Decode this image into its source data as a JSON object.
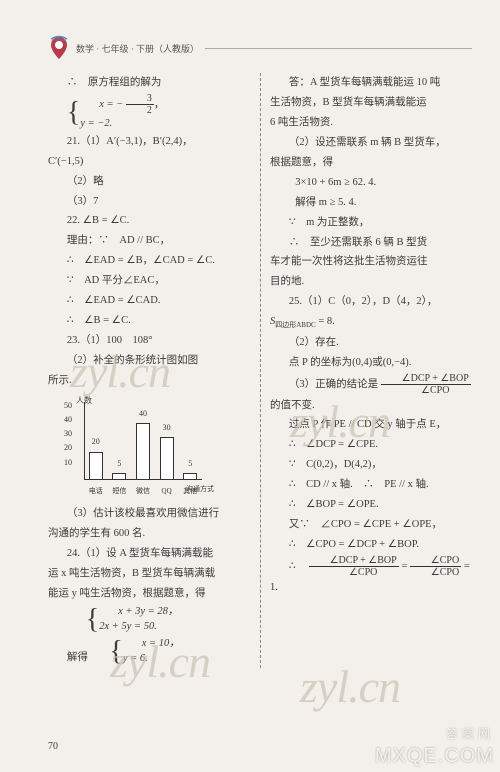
{
  "header": {
    "title": "数学 · 七年级 · 下册（人教版）"
  },
  "pageNumber": "70",
  "watermarks": [
    "zyl.cn",
    "zyl.cn",
    "zyl.cn",
    "zyl.cn"
  ],
  "siteMark1": "答案网",
  "siteMark2": "MXQE.COM",
  "left": {
    "l1a": "∴　原方程组的解为",
    "l1b_eq1_lhs": "x = −",
    "l1b_eq1_num": "3",
    "l1b_eq1_den": "2",
    "l1b_eq1_tail": "，",
    "l1b_eq2": "y = −2.",
    "l2": "21.（1）A′(−3,1)，B′(2,4)，",
    "l3": "C′(−1,5)",
    "l4": "（2）略",
    "l5": "（3）7",
    "l6": "22. ∠B = ∠C.",
    "l7": "理由：∵　AD // BC，",
    "l8": "∴　∠EAD = ∠B，∠CAD = ∠C.",
    "l9": "∵　AD 平分∠EAC，",
    "l10": "∴　∠EAD = ∠CAD.",
    "l11": "∴　∠B = ∠C.",
    "l12": "23.（1）100　108°",
    "l13": "（2）补全的条形统计图如图",
    "l14": "所示.",
    "chart": {
      "yTitle": "人数",
      "xTitle": "沟通方式",
      "yTicks": [
        "10",
        "20",
        "30",
        "40",
        "50"
      ],
      "yTickVals": [
        10,
        20,
        30,
        40,
        50
      ],
      "yMax": 55,
      "categories": [
        "电话",
        "短信",
        "微信",
        "QQ",
        "其他"
      ],
      "values": [
        20,
        5,
        40,
        30,
        5
      ],
      "barColor": "#ffffff",
      "borderColor": "#333333",
      "axisColor": "#333333",
      "fontSize": 8
    },
    "l15": "（3）估计该校最喜欢用微信进行",
    "l16": "沟通的学生有 600 名.",
    "l17": "24.（1）设 A 型货车每辆满载能",
    "l18": "运 x 吨生活物资，B 型货车每辆满载",
    "l19": "能运 y 吨生活物资，根据题意，得",
    "sys1_eq1": "x + 3y = 28，",
    "sys1_eq2": "2x + 5y = 50.",
    "sys2_lead": "解得",
    "sys2_eq1": "x = 10，",
    "sys2_eq2": "y = 6."
  },
  "right": {
    "r1": "答：A 型货车每辆满载能运 10 吨",
    "r2": "生活物资，B 型货车每辆满载能运",
    "r3": "6 吨生活物资.",
    "r4": "（2）设还需联系 m 辆 B 型货车，",
    "r5": "根据题意，得",
    "r6": "3×10 + 6m ≥ 62. 4.",
    "r7": "解得 m ≥ 5. 4.",
    "r8": "∵　m 为正整数，",
    "r9": "∴　至少还需联系 6 辆 B 型货",
    "r10": "车才能一次性将这批生活物资运往",
    "r11": "目的地.",
    "r12": "25.（1）C（0，2），D（4，2），",
    "r13_lhs": "S",
    "r13_sub": "四边形ABDC",
    "r13_rhs": " = 8.",
    "r14": "（2）存在.",
    "r15": "点 P 的坐标为(0,4)或(0,−4).",
    "r16a": "（3）正确的结论是",
    "r16_num": "∠DCP + ∠BOP",
    "r16_den": "∠CPO",
    "r17": "的值不变.",
    "r18": "过点 P 作 PE // CD 交 y 轴于点 E，",
    "r19": "∴　∠DCP = ∠CPE.",
    "r20": "∵　C(0,2)，D(4,2)，",
    "r21": "∴　CD // x 轴.　∴　PE // x 轴.",
    "r22": "∴　∠BOP = ∠OPE.",
    "r23": "又∵　∠CPO = ∠CPE + ∠OPE，",
    "r24": "∴　∠CPO = ∠DCP + ∠BOP.",
    "r25a": "∴　",
    "r25_num1": "∠DCP + ∠BOP",
    "r25_den1": "∠CPO",
    "r25_mid": " = ",
    "r25_num2": "∠CPO",
    "r25_den2": "∠CPO",
    "r25_tail": " = 1."
  }
}
